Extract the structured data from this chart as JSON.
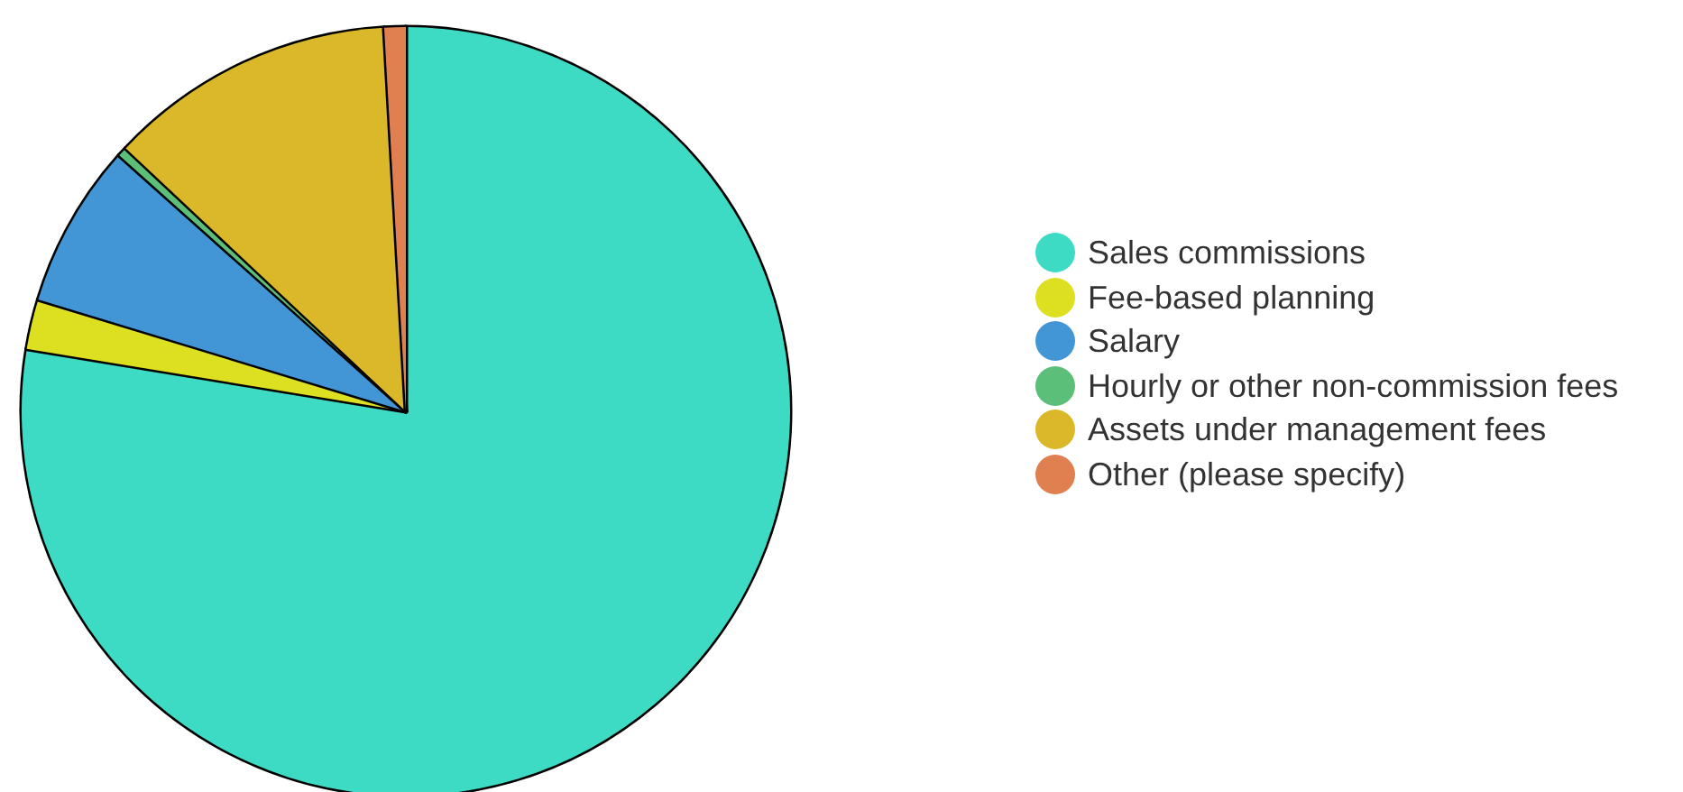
{
  "chart_data": {
    "type": "pie",
    "categories": [
      "Sales commissions",
      "Fee-based planning",
      "Salary",
      "Hourly or other non-commission fees",
      "Assets under management fees",
      "Other (please specify)"
    ],
    "values": [
      77.6,
      2.1,
      6.9,
      0.4,
      12.1,
      0.9
    ],
    "colors": [
      "#3ddbc3",
      "#dde021",
      "#4296d6",
      "#5bbf7a",
      "#dbb829",
      "#e07f4f"
    ],
    "legend": "right"
  }
}
